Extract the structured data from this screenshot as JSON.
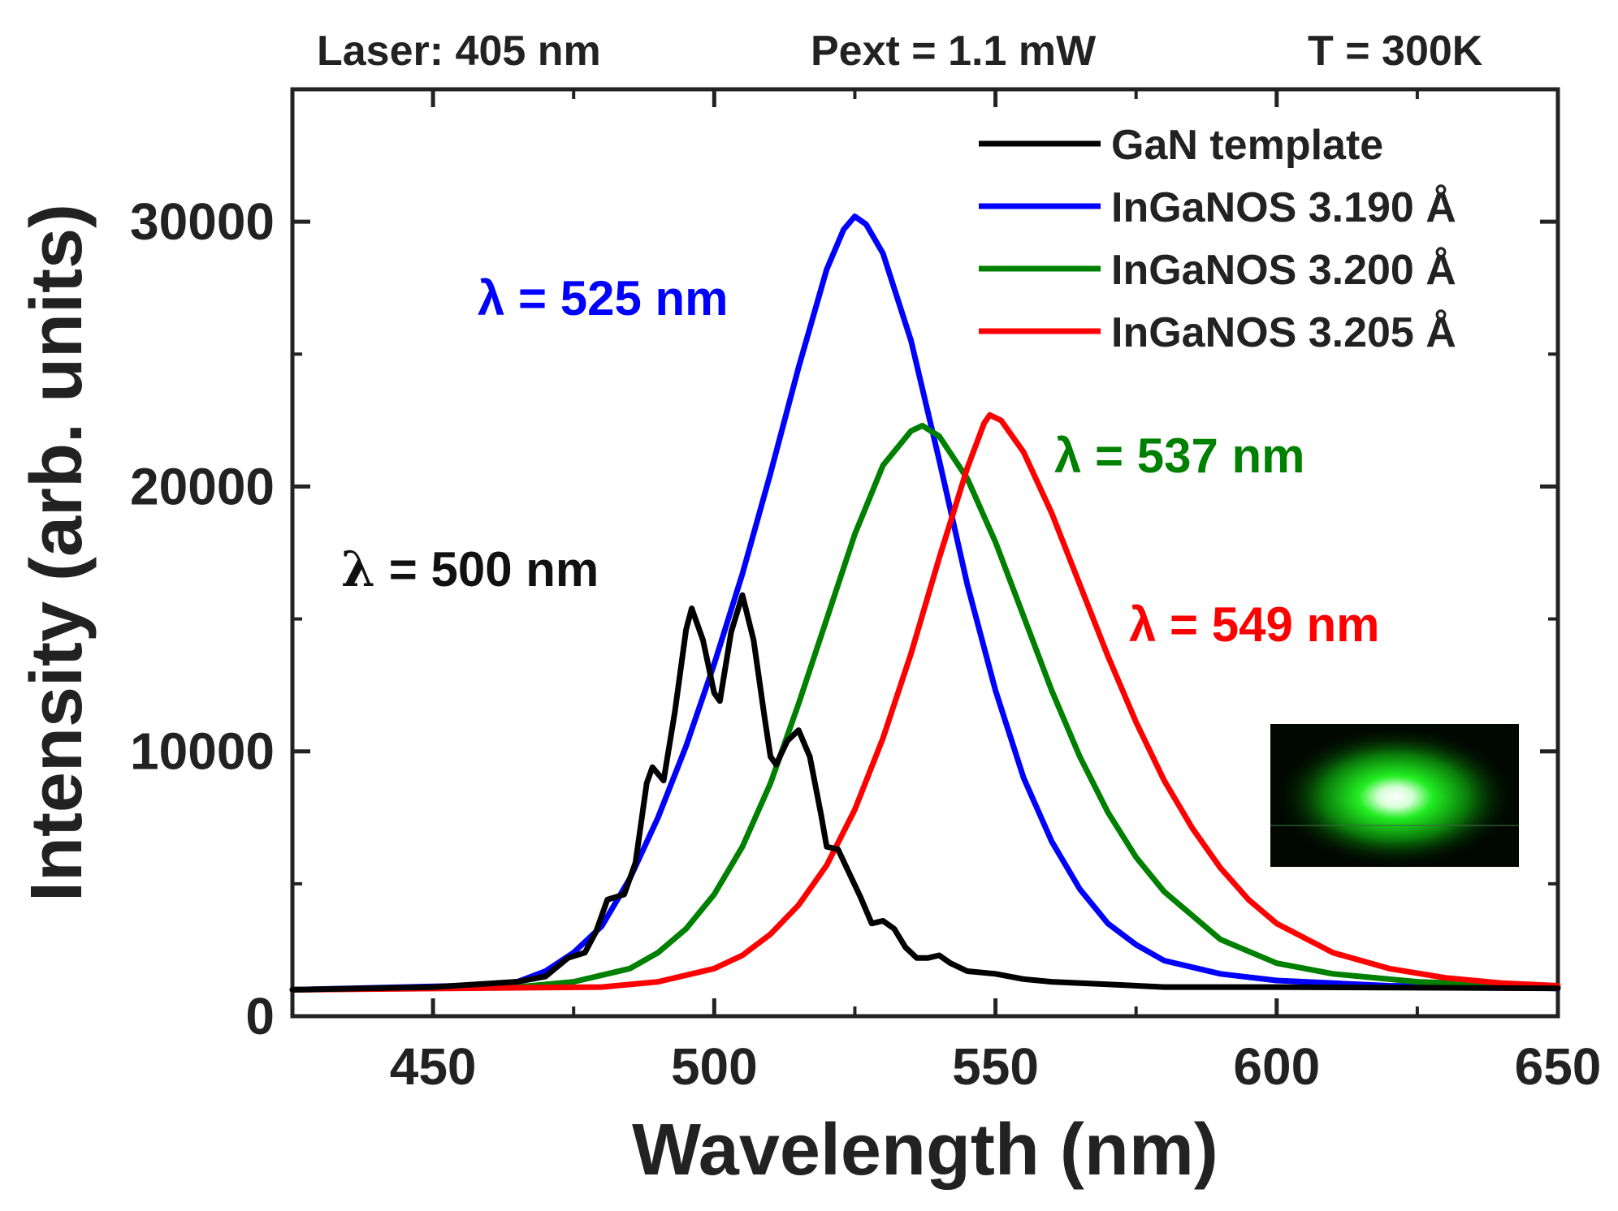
{
  "chart_data": {
    "type": "line",
    "header": {
      "laser": "Laser: 405 nm",
      "power": "Pext = 1.1 mW",
      "temperature": "T = 300K"
    },
    "xlabel": "Wavelength (nm)",
    "ylabel": "Intensity (arb. units)",
    "xlim": [
      425,
      650
    ],
    "ylim": [
      0,
      35000
    ],
    "x_ticks": [
      450,
      500,
      550,
      600,
      650
    ],
    "x_tick_labels": [
      "450",
      "500",
      "550",
      "600",
      "650"
    ],
    "y_ticks": [
      0,
      10000,
      20000,
      30000
    ],
    "y_tick_labels": [
      "0",
      "10000",
      "20000",
      "30000"
    ],
    "series": [
      {
        "name": "GaN template",
        "color": "#000000",
        "points": [
          [
            425,
            1000
          ],
          [
            450,
            1100
          ],
          [
            465,
            1300
          ],
          [
            470,
            1500
          ],
          [
            474,
            2200
          ],
          [
            477,
            2400
          ],
          [
            479,
            3200
          ],
          [
            481,
            4400
          ],
          [
            484,
            4600
          ],
          [
            486,
            5800
          ],
          [
            488,
            8800
          ],
          [
            489,
            9400
          ],
          [
            491,
            8900
          ],
          [
            493,
            11500
          ],
          [
            495,
            14600
          ],
          [
            496,
            15400
          ],
          [
            498,
            14200
          ],
          [
            500,
            12200
          ],
          [
            501,
            11900
          ],
          [
            503,
            14500
          ],
          [
            505,
            15900
          ],
          [
            507,
            14200
          ],
          [
            509,
            11200
          ],
          [
            510,
            9800
          ],
          [
            511,
            9500
          ],
          [
            513,
            10400
          ],
          [
            515,
            10800
          ],
          [
            517,
            9800
          ],
          [
            519,
            7600
          ],
          [
            520,
            6400
          ],
          [
            522,
            6300
          ],
          [
            524,
            5400
          ],
          [
            526,
            4500
          ],
          [
            528,
            3500
          ],
          [
            530,
            3600
          ],
          [
            532,
            3300
          ],
          [
            534,
            2600
          ],
          [
            536,
            2200
          ],
          [
            538,
            2200
          ],
          [
            540,
            2300
          ],
          [
            542,
            2000
          ],
          [
            545,
            1700
          ],
          [
            550,
            1600
          ],
          [
            555,
            1400
          ],
          [
            560,
            1300
          ],
          [
            570,
            1200
          ],
          [
            580,
            1100
          ],
          [
            600,
            1100
          ],
          [
            650,
            1050
          ]
        ]
      },
      {
        "name": "InGaNOS 3.190 Å",
        "color": "#0000ff",
        "peak_label": "λ = 525 nm",
        "points": [
          [
            425,
            1000
          ],
          [
            455,
            1150
          ],
          [
            465,
            1300
          ],
          [
            470,
            1700
          ],
          [
            475,
            2400
          ],
          [
            480,
            3400
          ],
          [
            485,
            5200
          ],
          [
            490,
            7500
          ],
          [
            495,
            10200
          ],
          [
            500,
            13300
          ],
          [
            505,
            16700
          ],
          [
            510,
            20500
          ],
          [
            515,
            24500
          ],
          [
            520,
            28200
          ],
          [
            523,
            29700
          ],
          [
            525,
            30200
          ],
          [
            527,
            29900
          ],
          [
            530,
            28800
          ],
          [
            535,
            25500
          ],
          [
            540,
            21000
          ],
          [
            545,
            16300
          ],
          [
            550,
            12300
          ],
          [
            555,
            9000
          ],
          [
            560,
            6600
          ],
          [
            565,
            4800
          ],
          [
            570,
            3500
          ],
          [
            575,
            2700
          ],
          [
            580,
            2100
          ],
          [
            590,
            1600
          ],
          [
            600,
            1350
          ],
          [
            620,
            1150
          ],
          [
            650,
            1050
          ]
        ]
      },
      {
        "name": "InGaNOS 3.200 Å",
        "color": "#008000",
        "peak_label": "λ = 537 nm",
        "points": [
          [
            425,
            1000
          ],
          [
            465,
            1100
          ],
          [
            475,
            1300
          ],
          [
            485,
            1800
          ],
          [
            490,
            2400
          ],
          [
            495,
            3300
          ],
          [
            500,
            4600
          ],
          [
            505,
            6400
          ],
          [
            510,
            8800
          ],
          [
            515,
            11800
          ],
          [
            520,
            15000
          ],
          [
            525,
            18200
          ],
          [
            530,
            20800
          ],
          [
            535,
            22100
          ],
          [
            537,
            22300
          ],
          [
            540,
            21900
          ],
          [
            545,
            20300
          ],
          [
            550,
            17900
          ],
          [
            555,
            15100
          ],
          [
            560,
            12300
          ],
          [
            565,
            9800
          ],
          [
            570,
            7700
          ],
          [
            575,
            6000
          ],
          [
            580,
            4700
          ],
          [
            590,
            2900
          ],
          [
            600,
            2000
          ],
          [
            610,
            1600
          ],
          [
            625,
            1300
          ],
          [
            650,
            1100
          ]
        ]
      },
      {
        "name": "InGaNOS 3.205 Å",
        "color": "#ff0000",
        "peak_label": "λ = 549 nm",
        "points": [
          [
            425,
            1000
          ],
          [
            480,
            1100
          ],
          [
            490,
            1300
          ],
          [
            500,
            1800
          ],
          [
            505,
            2300
          ],
          [
            510,
            3100
          ],
          [
            515,
            4200
          ],
          [
            520,
            5700
          ],
          [
            525,
            7800
          ],
          [
            530,
            10500
          ],
          [
            535,
            13700
          ],
          [
            540,
            17300
          ],
          [
            545,
            20700
          ],
          [
            548,
            22400
          ],
          [
            549,
            22700
          ],
          [
            551,
            22500
          ],
          [
            555,
            21300
          ],
          [
            560,
            19000
          ],
          [
            565,
            16300
          ],
          [
            570,
            13600
          ],
          [
            575,
            11100
          ],
          [
            580,
            8900
          ],
          [
            585,
            7100
          ],
          [
            590,
            5600
          ],
          [
            595,
            4400
          ],
          [
            600,
            3500
          ],
          [
            610,
            2400
          ],
          [
            620,
            1800
          ],
          [
            630,
            1450
          ],
          [
            640,
            1250
          ],
          [
            650,
            1150
          ]
        ]
      }
    ]
  }
}
